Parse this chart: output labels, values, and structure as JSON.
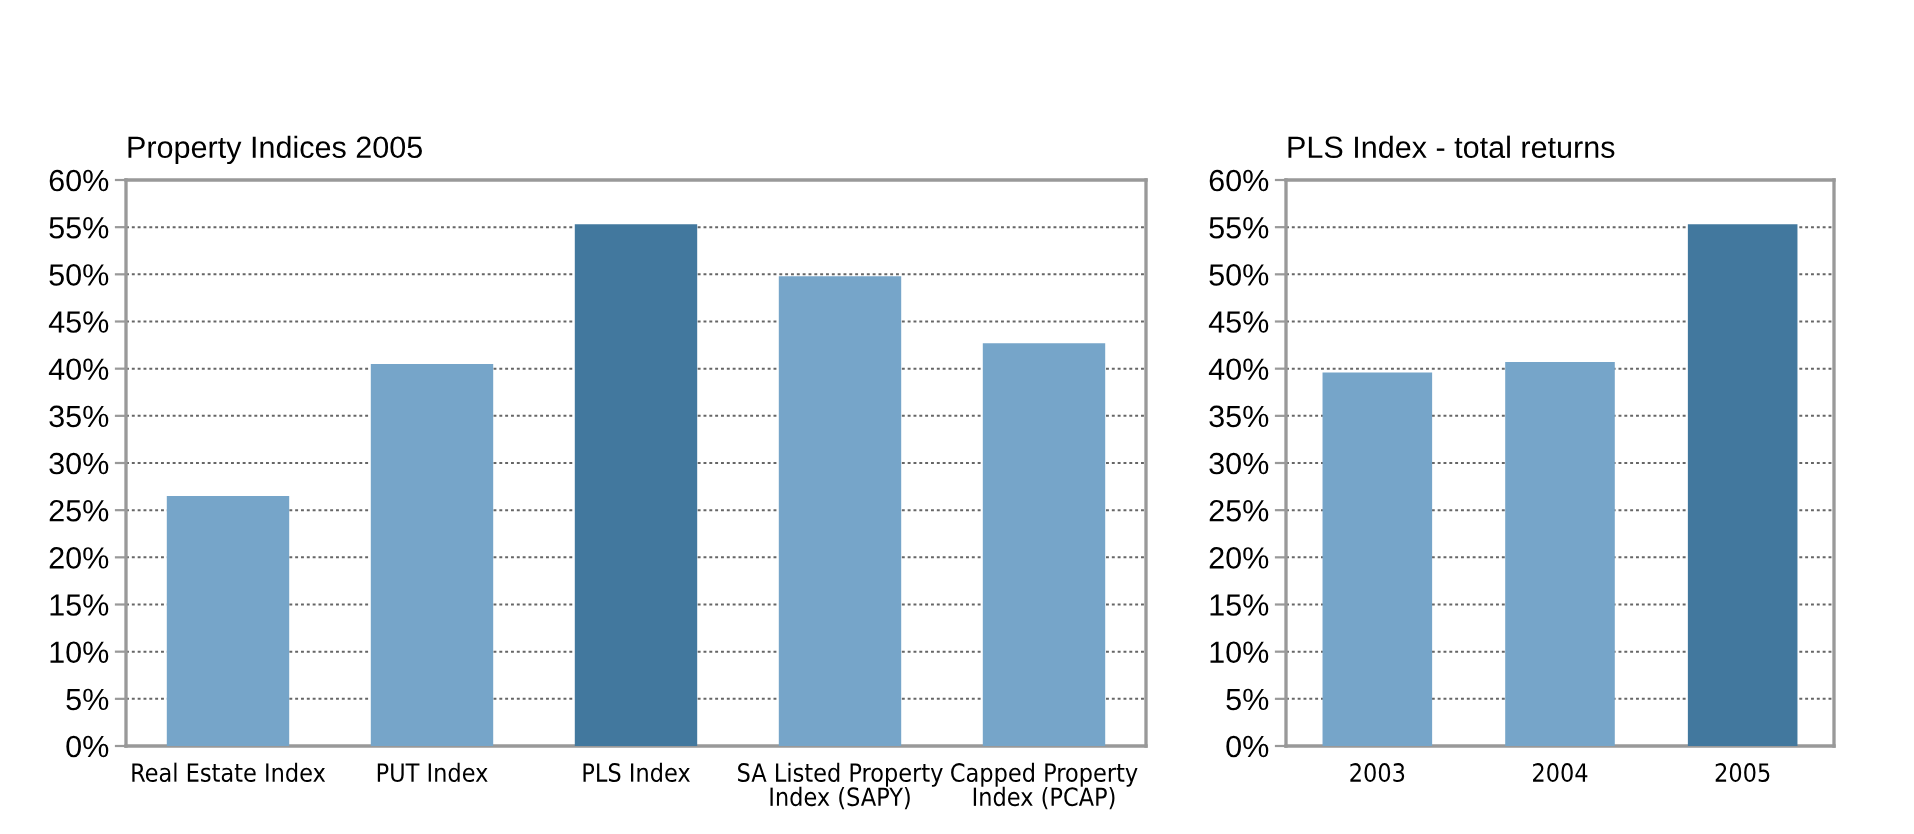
{
  "chart_data": [
    {
      "type": "bar",
      "title": "Property Indices 2005",
      "categories": [
        "Real Estate Index",
        "PUT Index",
        "PLS Index",
        "SA Listed Property\nIndex (SAPY)",
        "Capped Property\nIndex (PCAP)"
      ],
      "values": [
        26.5,
        40.5,
        55.3,
        49.8,
        42.7
      ],
      "colors": [
        "#76a5c9",
        "#76a5c9",
        "#42789e",
        "#76a5c9",
        "#76a5c9"
      ],
      "ylim": [
        0,
        60
      ],
      "yticks": [
        {
          "value": 0,
          "label": "0%"
        },
        {
          "value": 5,
          "label": "5%"
        },
        {
          "value": 10,
          "label": "10%"
        },
        {
          "value": 15,
          "label": "15%"
        },
        {
          "value": 20,
          "label": "20%"
        },
        {
          "value": 25,
          "label": "25%"
        },
        {
          "value": 30,
          "label": "30%"
        },
        {
          "value": 35,
          "label": "35%"
        },
        {
          "value": 40,
          "label": "40%"
        },
        {
          "value": 45,
          "label": "45%"
        },
        {
          "value": 50,
          "label": "50%"
        },
        {
          "value": 55,
          "label": "55%"
        },
        {
          "value": 60,
          "label": "60%"
        }
      ],
      "grid": "y"
    },
    {
      "type": "bar",
      "title": "PLS Index - total returns",
      "categories": [
        "2003",
        "2004",
        "2005"
      ],
      "values": [
        39.6,
        40.7,
        55.3
      ],
      "colors": [
        "#76a5c9",
        "#76a5c9",
        "#42789e"
      ],
      "ylim": [
        0,
        60
      ],
      "yticks": [
        {
          "value": 0,
          "label": "0%"
        },
        {
          "value": 5,
          "label": "5%"
        },
        {
          "value": 10,
          "label": "10%"
        },
        {
          "value": 15,
          "label": "15%"
        },
        {
          "value": 20,
          "label": "20%"
        },
        {
          "value": 25,
          "label": "25%"
        },
        {
          "value": 30,
          "label": "30%"
        },
        {
          "value": 35,
          "label": "35%"
        },
        {
          "value": 40,
          "label": "40%"
        },
        {
          "value": 45,
          "label": "45%"
        },
        {
          "value": 50,
          "label": "50%"
        },
        {
          "value": 55,
          "label": "55%"
        },
        {
          "value": 60,
          "label": "60%"
        }
      ],
      "grid": "y"
    }
  ]
}
